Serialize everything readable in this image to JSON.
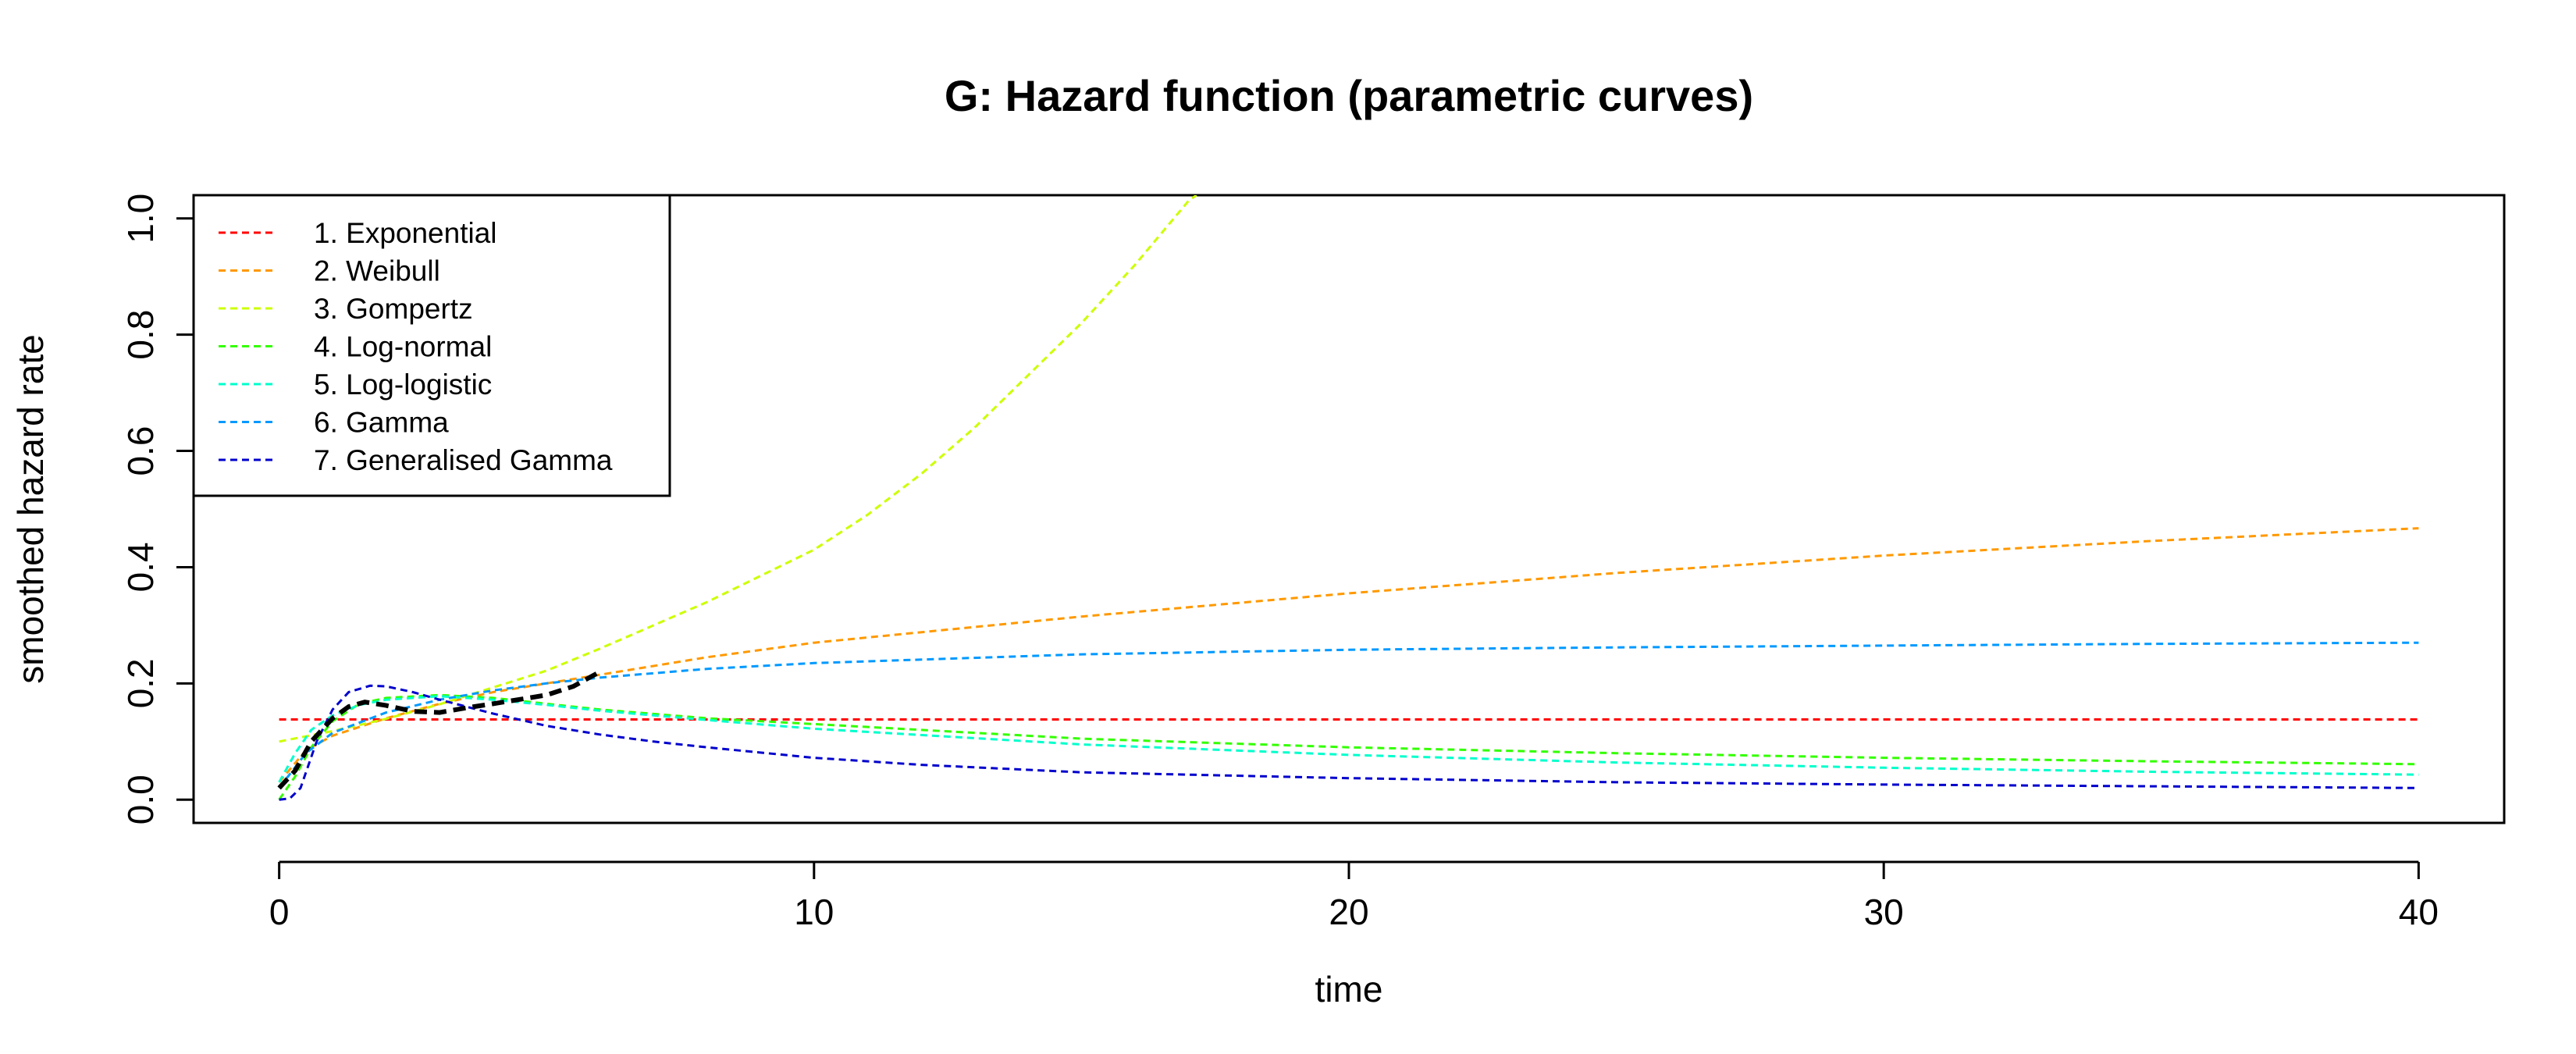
{
  "chart_data": {
    "type": "line",
    "title": "G: Hazard function (parametric curves)",
    "xlabel": "time",
    "ylabel": "smoothed hazard rate",
    "xlim": [
      -1.6,
      41.6
    ],
    "ylim": [
      -0.04,
      1.04
    ],
    "xticks": [
      0,
      10,
      20,
      30,
      40
    ],
    "yticks": [
      0.0,
      0.2,
      0.4,
      0.6,
      0.8,
      1.0
    ],
    "xtick_labels": [
      "0",
      "10",
      "20",
      "30",
      "40"
    ],
    "ytick_labels": [
      "0.0",
      "0.2",
      "0.4",
      "0.6",
      "0.8",
      "1.0"
    ],
    "legend_position": "top-left",
    "series": [
      {
        "name": "1. Exponential",
        "color": "#FF0000",
        "x": [
          0,
          40
        ],
        "y": [
          0.138,
          0.138
        ]
      },
      {
        "name": "2. Weibull",
        "color": "#FF9900",
        "x": [
          0,
          0.5,
          1,
          2,
          3,
          4,
          5,
          6,
          8,
          10,
          15,
          20,
          25,
          30,
          35,
          40
        ],
        "y": [
          0.03,
          0.085,
          0.11,
          0.14,
          0.165,
          0.185,
          0.2,
          0.215,
          0.245,
          0.27,
          0.315,
          0.355,
          0.39,
          0.42,
          0.445,
          0.467
        ]
      },
      {
        "name": "3. Gompertz",
        "color": "#CCFF00",
        "x": [
          0,
          1,
          2,
          3,
          4,
          5,
          6,
          7,
          8,
          9,
          10,
          11,
          12,
          13,
          14,
          15,
          16,
          17,
          17.15
        ],
        "y": [
          0.1,
          0.118,
          0.139,
          0.164,
          0.193,
          0.222,
          0.26,
          0.3,
          0.34,
          0.385,
          0.43,
          0.49,
          0.56,
          0.64,
          0.73,
          0.82,
          0.92,
          1.03,
          1.04
        ]
      },
      {
        "name": "4. Log-normal",
        "color": "#33FF00",
        "x": [
          0,
          0.3,
          0.6,
          1,
          1.5,
          2,
          3,
          4,
          5,
          6,
          8,
          10,
          15,
          20,
          25,
          30,
          35,
          40
        ],
        "y": [
          0.0,
          0.04,
          0.09,
          0.135,
          0.165,
          0.175,
          0.18,
          0.175,
          0.165,
          0.155,
          0.14,
          0.13,
          0.105,
          0.09,
          0.08,
          0.072,
          0.066,
          0.061
        ]
      },
      {
        "name": "5. Log-logistic",
        "color": "#00FFCC",
        "x": [
          0,
          0.3,
          0.6,
          1,
          1.5,
          2,
          3,
          4,
          5,
          6,
          8,
          10,
          15,
          20,
          25,
          30,
          35,
          40
        ],
        "y": [
          0.03,
          0.08,
          0.12,
          0.145,
          0.163,
          0.172,
          0.178,
          0.172,
          0.163,
          0.153,
          0.137,
          0.122,
          0.095,
          0.077,
          0.064,
          0.055,
          0.048,
          0.043
        ]
      },
      {
        "name": "6. Gamma",
        "color": "#0099FF",
        "x": [
          0,
          0.5,
          1,
          2,
          3,
          4,
          5,
          6,
          8,
          10,
          15,
          20,
          25,
          30,
          35,
          40
        ],
        "y": [
          0.02,
          0.08,
          0.115,
          0.15,
          0.172,
          0.188,
          0.2,
          0.21,
          0.225,
          0.235,
          0.25,
          0.258,
          0.262,
          0.265,
          0.268,
          0.27
        ]
      },
      {
        "name": "7. Generalised Gamma",
        "color": "#0000CC",
        "x": [
          0,
          0.2,
          0.4,
          0.7,
          1,
          1.3,
          1.7,
          2,
          2.5,
          3,
          4,
          5,
          6,
          7,
          8,
          10,
          12,
          15,
          20,
          25,
          30,
          35,
          40
        ],
        "y": [
          0.0,
          0.002,
          0.02,
          0.1,
          0.155,
          0.185,
          0.196,
          0.195,
          0.185,
          0.172,
          0.148,
          0.127,
          0.112,
          0.1,
          0.09,
          0.072,
          0.06,
          0.047,
          0.037,
          0.03,
          0.026,
          0.023,
          0.02
        ]
      }
    ],
    "observed": {
      "color": "#000000",
      "x": [
        0,
        0.3,
        0.6,
        1,
        1.3,
        1.6,
        2,
        2.5,
        3,
        3.5,
        4,
        5,
        5.5,
        6
      ],
      "y": [
        0.02,
        0.05,
        0.1,
        0.14,
        0.16,
        0.168,
        0.162,
        0.152,
        0.15,
        0.158,
        0.165,
        0.18,
        0.195,
        0.22
      ]
    }
  }
}
